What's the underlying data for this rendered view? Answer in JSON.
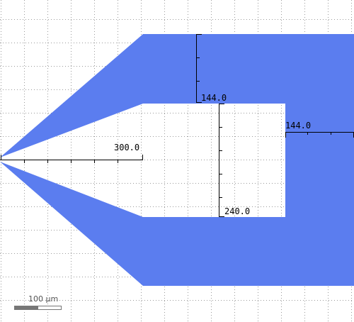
{
  "colors": {
    "background": "#ffffff",
    "grid": "#9a9a9a",
    "shape_fill": "#5b7def",
    "ruler": "#000000",
    "scale_bar": "#777777"
  },
  "rulers": {
    "top_gap_label": "144.0",
    "right_gap_label": "144.0",
    "taper_length_label": "300.0",
    "inner_height_label": "240.0"
  },
  "scale_bar": {
    "label": "100 µm"
  }
}
